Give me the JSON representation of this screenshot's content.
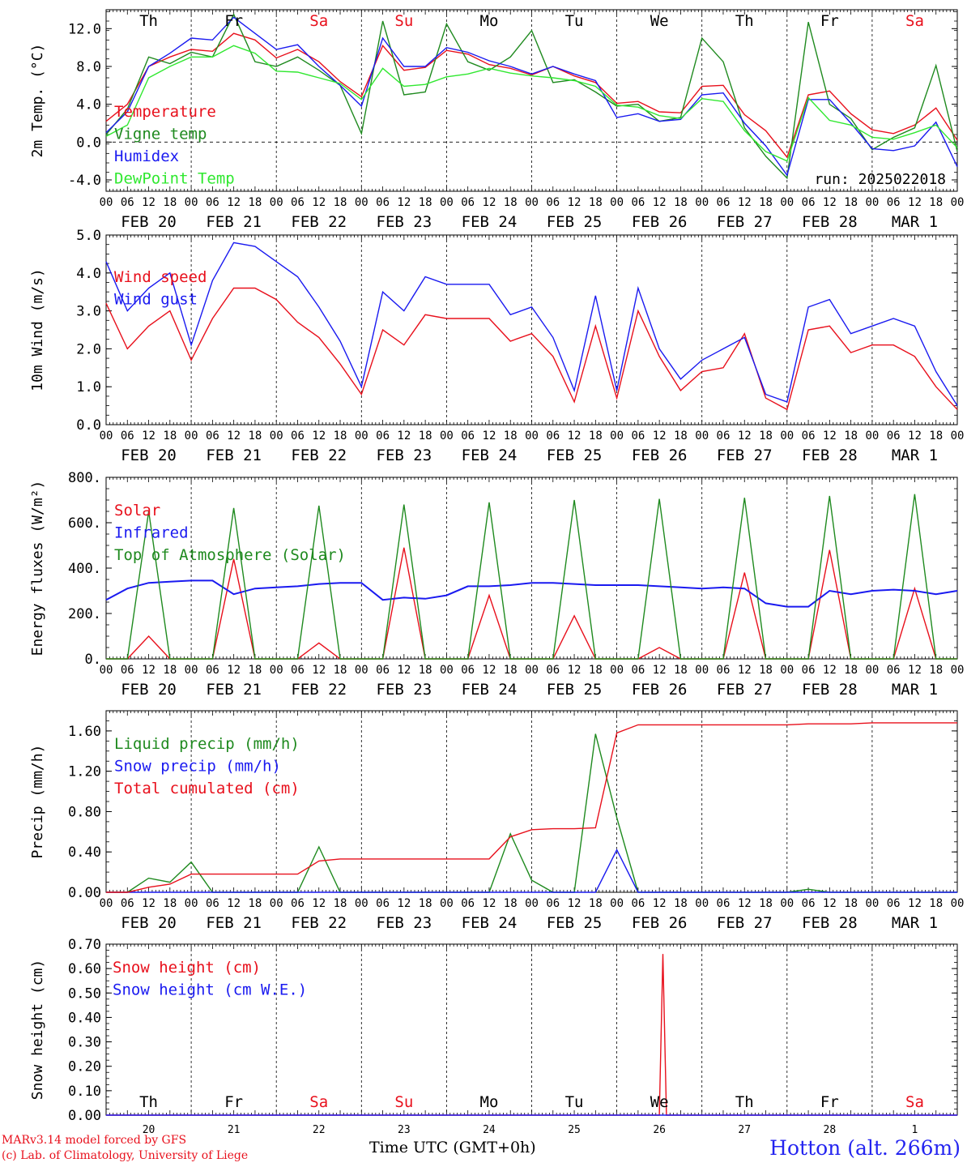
{
  "colors": {
    "red": "#e8101c",
    "blue": "#1a1af0",
    "green": "#1f8a1f",
    "lightgreen": "#30e830",
    "title_blue": "#2424f0",
    "axis": "#000000"
  },
  "header": {
    "days": [
      {
        "label": "Th",
        "color": "#000000"
      },
      {
        "label": "Fr",
        "color": "#000000"
      },
      {
        "label": "Sa",
        "color": "#e8101c"
      },
      {
        "label": "Su",
        "color": "#e8101c"
      },
      {
        "label": "Mo",
        "color": "#000000"
      },
      {
        "label": "Tu",
        "color": "#000000"
      },
      {
        "label": "We",
        "color": "#000000"
      },
      {
        "label": "Th",
        "color": "#000000"
      },
      {
        "label": "Fr",
        "color": "#000000"
      },
      {
        "label": "Sa",
        "color": "#e8101c"
      }
    ],
    "dates": [
      "FEB 20",
      "FEB 21",
      "FEB 22",
      "FEB 23",
      "FEB 24",
      "FEB 25",
      "FEB 26",
      "FEB 27",
      "FEB 28",
      "MAR  1"
    ],
    "day_numbers": [
      "20",
      "21",
      "22",
      "23",
      "24",
      "25",
      "26",
      "27",
      "28",
      "1"
    ],
    "hour_ticks": [
      "00",
      "06",
      "12",
      "18"
    ],
    "last_hour_tick": "00"
  },
  "footer": {
    "credit_line1": "MARv3.14 model forced by GFS",
    "credit_line2": "(c) Lab. of Climatology, University of Liege",
    "time_axis_label": "Time UTC (GMT+0h)",
    "station": "Hotton (alt. 266m)"
  },
  "chart_data": [
    {
      "id": "temperature",
      "type": "line",
      "ylabel": "2m Temp. (°C)",
      "ylim": [
        -5.2,
        14.0
      ],
      "yticks": [
        -4.0,
        0.0,
        4.0,
        8.0,
        12.0
      ],
      "ytick_labels": [
        "-4.0",
        "0.0",
        "4.0",
        "8.0",
        "12.0"
      ],
      "zero_line": true,
      "annotation": "run: 2025022018",
      "x_unit": "hours since Feb 20 00 UTC",
      "x": [
        0,
        6,
        12,
        18,
        24,
        30,
        36,
        42,
        48,
        54,
        60,
        66,
        72,
        78,
        84,
        90,
        96,
        102,
        108,
        114,
        120,
        126,
        132,
        138,
        144,
        150,
        156,
        162,
        168,
        174,
        180,
        186,
        192,
        198,
        204,
        210,
        216,
        222,
        228,
        234,
        240
      ],
      "series": [
        {
          "name": "Temperature",
          "color": "#e8101c",
          "values": [
            2.2,
            4.0,
            8.0,
            9.0,
            9.8,
            9.6,
            11.5,
            10.8,
            8.9,
            9.8,
            8.5,
            6.4,
            4.8,
            10.2,
            7.6,
            7.9,
            9.7,
            9.3,
            8.2,
            7.8,
            7.1,
            8.0,
            7.0,
            6.3,
            4.1,
            4.3,
            3.2,
            3.1,
            5.9,
            6.0,
            2.9,
            1.2,
            -1.6,
            5.0,
            5.4,
            3.0,
            1.3,
            0.9,
            1.8,
            3.6,
            0.2
          ]
        },
        {
          "name": "Vigne temp",
          "color": "#1f8a1f",
          "values": [
            0.8,
            3.5,
            9.0,
            8.3,
            9.5,
            9.0,
            13.5,
            8.5,
            8.0,
            9.0,
            7.6,
            6.0,
            0.9,
            12.8,
            5.0,
            5.3,
            12.5,
            8.5,
            7.6,
            9.0,
            11.8,
            6.3,
            6.6,
            5.3,
            3.8,
            4.0,
            2.2,
            2.6,
            11.0,
            8.5,
            1.5,
            -1.5,
            -3.8,
            12.7,
            4.0,
            2.5,
            -0.8,
            0.5,
            1.5,
            8.1,
            -1.0
          ]
        },
        {
          "name": "Humidex",
          "color": "#1a1af0",
          "values": [
            1.0,
            3.2,
            8.0,
            9.4,
            11.0,
            10.8,
            13.2,
            11.5,
            9.8,
            10.3,
            8.0,
            6.0,
            3.8,
            11.0,
            8.0,
            8.0,
            10.0,
            9.5,
            8.6,
            8.0,
            7.2,
            8.0,
            7.2,
            6.5,
            2.6,
            3.0,
            2.2,
            2.4,
            5.0,
            5.2,
            2.0,
            -0.4,
            -3.5,
            4.5,
            4.5,
            2.0,
            -0.7,
            -0.9,
            -0.4,
            2.1,
            -2.6
          ]
        },
        {
          "name": "DewPoint Temp",
          "color": "#30e830",
          "values": [
            0.6,
            1.8,
            6.8,
            8.0,
            9.0,
            9.0,
            10.2,
            9.4,
            7.5,
            7.4,
            6.8,
            6.2,
            4.5,
            7.8,
            5.9,
            6.1,
            6.9,
            7.2,
            7.8,
            7.3,
            7.0,
            6.8,
            6.5,
            5.9,
            3.9,
            3.7,
            2.8,
            2.5,
            4.6,
            4.3,
            1.2,
            -1.0,
            -2.0,
            4.7,
            2.3,
            1.8,
            0.5,
            0.3,
            1.0,
            1.8,
            -0.6
          ]
        }
      ]
    },
    {
      "id": "wind",
      "type": "line",
      "ylabel": "10m Wind (m/s)",
      "ylim": [
        0.0,
        5.0
      ],
      "yticks": [
        0.0,
        1.0,
        2.0,
        3.0,
        4.0,
        5.0
      ],
      "ytick_labels": [
        "0.0",
        "1.0",
        "2.0",
        "3.0",
        "4.0",
        "5.0"
      ],
      "x": [
        0,
        6,
        12,
        18,
        24,
        30,
        36,
        42,
        48,
        54,
        60,
        66,
        72,
        78,
        84,
        90,
        96,
        102,
        108,
        114,
        120,
        126,
        132,
        138,
        144,
        150,
        156,
        162,
        168,
        174,
        180,
        186,
        192,
        198,
        204,
        210,
        216,
        222,
        228,
        234,
        240
      ],
      "series": [
        {
          "name": "Wind speed",
          "color": "#e8101c",
          "values": [
            3.2,
            2.0,
            2.6,
            3.0,
            1.7,
            2.8,
            3.6,
            3.6,
            3.3,
            2.7,
            2.3,
            1.6,
            0.8,
            2.5,
            2.1,
            2.9,
            2.8,
            2.8,
            2.8,
            2.2,
            2.4,
            1.8,
            0.6,
            2.6,
            0.7,
            3.0,
            1.8,
            0.9,
            1.4,
            1.5,
            2.4,
            0.7,
            0.4,
            2.5,
            2.6,
            1.9,
            2.1,
            2.1,
            1.8,
            1.0,
            0.4
          ]
        },
        {
          "name": "Wind gust",
          "color": "#1a1af0",
          "values": [
            4.3,
            3.0,
            3.6,
            4.0,
            2.1,
            3.8,
            4.8,
            4.7,
            4.3,
            3.9,
            3.1,
            2.2,
            1.0,
            3.5,
            3.0,
            3.9,
            3.7,
            3.7,
            3.7,
            2.9,
            3.1,
            2.3,
            0.9,
            3.4,
            0.9,
            3.6,
            2.0,
            1.2,
            1.7,
            2.0,
            2.3,
            0.8,
            0.6,
            3.1,
            3.3,
            2.4,
            2.6,
            2.8,
            2.6,
            1.4,
            0.5
          ]
        }
      ]
    },
    {
      "id": "fluxes",
      "type": "line",
      "ylabel": "Energy fluxes (W/m²)",
      "ylim": [
        0,
        800
      ],
      "yticks": [
        0,
        200,
        400,
        600,
        800
      ],
      "ytick_labels": [
        "0.",
        "200.",
        "400.",
        "600.",
        "800."
      ],
      "x": [
        0,
        6,
        12,
        18,
        24,
        30,
        36,
        42,
        48,
        54,
        60,
        66,
        72,
        78,
        84,
        90,
        96,
        102,
        108,
        114,
        120,
        126,
        132,
        138,
        144,
        150,
        156,
        162,
        168,
        174,
        180,
        186,
        192,
        198,
        204,
        210,
        216,
        222,
        228,
        234,
        240
      ],
      "series": [
        {
          "name": "Solar",
          "color": "#e8101c",
          "values": [
            0,
            0,
            100,
            0,
            0,
            0,
            440,
            0,
            0,
            0,
            70,
            0,
            0,
            0,
            490,
            0,
            0,
            0,
            280,
            0,
            0,
            0,
            190,
            0,
            0,
            0,
            50,
            0,
            0,
            0,
            380,
            0,
            0,
            0,
            480,
            0,
            0,
            0,
            310,
            0,
            0
          ]
        },
        {
          "name": "Infrared",
          "color": "#1a1af0",
          "values": [
            260,
            310,
            335,
            340,
            345,
            345,
            285,
            310,
            315,
            320,
            330,
            335,
            335,
            260,
            270,
            265,
            280,
            320,
            320,
            325,
            335,
            335,
            330,
            325,
            325,
            325,
            320,
            315,
            310,
            315,
            310,
            245,
            230,
            230,
            300,
            285,
            300,
            305,
            300,
            285,
            300
          ]
        },
        {
          "name": "Top of Atmosphere (Solar)",
          "color": "#1f8a1f",
          "values": [
            0,
            0,
            650,
            0,
            0,
            0,
            665,
            0,
            0,
            0,
            675,
            0,
            0,
            0,
            680,
            0,
            0,
            0,
            690,
            0,
            0,
            0,
            700,
            0,
            0,
            0,
            705,
            0,
            0,
            0,
            710,
            0,
            0,
            0,
            718,
            0,
            0,
            0,
            726,
            0,
            0
          ]
        }
      ]
    },
    {
      "id": "precip",
      "type": "line",
      "ylabel": "Precip (mm/h)",
      "ylim": [
        0.0,
        1.8
      ],
      "yticks": [
        0.0,
        0.4,
        0.8,
        1.2,
        1.6
      ],
      "ytick_labels": [
        "0.00",
        "0.40",
        "0.80",
        "1.20",
        "1.60"
      ],
      "x": [
        0,
        6,
        12,
        18,
        24,
        30,
        36,
        42,
        48,
        54,
        60,
        66,
        72,
        78,
        84,
        90,
        96,
        102,
        108,
        114,
        120,
        126,
        132,
        138,
        144,
        150,
        156,
        162,
        168,
        174,
        180,
        186,
        192,
        198,
        204,
        210,
        216,
        222,
        228,
        234,
        240
      ],
      "series": [
        {
          "name": "Liquid precip (mm/h)",
          "color": "#1f8a1f",
          "values": [
            0,
            0,
            0.14,
            0.1,
            0.3,
            0,
            0,
            0,
            0,
            0,
            0.45,
            0,
            0,
            0,
            0,
            0,
            0,
            0,
            0,
            0.58,
            0.12,
            0,
            0,
            1.57,
            0.74,
            0,
            0,
            0,
            0,
            0,
            0,
            0,
            0,
            0.03,
            0,
            0,
            0,
            0,
            0,
            0,
            0
          ]
        },
        {
          "name": "Snow precip (mm/h)",
          "color": "#1a1af0",
          "values": [
            0,
            0,
            0,
            0,
            0,
            0,
            0,
            0,
            0,
            0,
            0,
            0,
            0,
            0,
            0,
            0,
            0,
            0,
            0,
            0,
            0,
            0,
            0,
            0,
            0.42,
            0,
            0,
            0,
            0,
            0,
            0,
            0,
            0,
            0,
            0,
            0,
            0,
            0,
            0,
            0,
            0
          ]
        },
        {
          "name": "Total cumulated (cm)",
          "color": "#e8101c",
          "values": [
            0,
            0,
            0.05,
            0.08,
            0.18,
            0.18,
            0.18,
            0.18,
            0.18,
            0.18,
            0.31,
            0.33,
            0.33,
            0.33,
            0.33,
            0.33,
            0.33,
            0.33,
            0.33,
            0.55,
            0.62,
            0.63,
            0.63,
            0.64,
            1.58,
            1.66,
            1.66,
            1.66,
            1.66,
            1.66,
            1.66,
            1.66,
            1.66,
            1.67,
            1.67,
            1.67,
            1.68,
            1.68,
            1.68,
            1.68,
            1.68
          ]
        }
      ]
    },
    {
      "id": "snow",
      "type": "line",
      "ylabel": "Snow height (cm)",
      "ylim": [
        0.0,
        0.7
      ],
      "yticks": [
        0.0,
        0.1,
        0.2,
        0.3,
        0.4,
        0.5,
        0.6,
        0.7
      ],
      "ytick_labels": [
        "0.00",
        "0.10",
        "0.20",
        "0.30",
        "0.40",
        "0.50",
        "0.60",
        "0.70"
      ],
      "x": [
        0,
        24,
        48,
        72,
        96,
        120,
        144,
        156,
        157,
        158,
        168,
        192,
        216,
        240
      ],
      "series": [
        {
          "name": "Snow height (cm)",
          "color": "#e8101c",
          "values": [
            0,
            0,
            0,
            0,
            0,
            0,
            0,
            0,
            0.66,
            0,
            0,
            0,
            0,
            0
          ]
        },
        {
          "name": "Snow height (cm W.E.)",
          "color": "#1a1af0",
          "values": [
            0,
            0,
            0,
            0,
            0,
            0,
            0,
            0,
            0,
            0,
            0,
            0,
            0,
            0
          ]
        }
      ]
    }
  ]
}
